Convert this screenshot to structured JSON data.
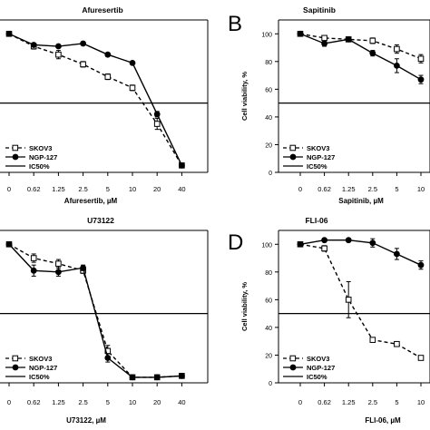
{
  "chart_data": [
    {
      "type": "line",
      "panel_letter": "",
      "title": "Afuresertib",
      "xlabel": "Afuresertib, µM",
      "ylabel": "",
      "categories": [
        "0",
        "0.62",
        "1.25",
        "2.5",
        "5",
        "10",
        "20",
        "40"
      ],
      "yticks": [],
      "ylim": [
        0,
        110
      ],
      "ic50": 50,
      "series": [
        {
          "name": "SKOV3",
          "style": "dashed-open-square",
          "values": [
            100,
            91,
            85,
            78,
            69,
            61,
            35,
            5
          ],
          "errors": [
            0,
            2,
            3,
            2,
            2,
            2,
            4,
            1
          ]
        },
        {
          "name": "NGP-127",
          "style": "solid-filled-circle",
          "values": [
            100,
            92,
            91,
            93,
            85,
            79,
            42,
            5
          ],
          "errors": [
            0,
            1,
            1,
            1,
            1,
            1,
            2,
            1
          ]
        }
      ],
      "legend": {
        "entries": [
          "SKOV3",
          "NGP-127",
          "IC50%"
        ],
        "position": "bottom-left"
      }
    },
    {
      "type": "line",
      "panel_letter": "B",
      "title": "Sapitinib",
      "xlabel": "Sapitinib, µM",
      "ylabel": "Cell viability, %",
      "categories": [
        "0",
        "0.62",
        "1.25",
        "2.5",
        "5",
        "10"
      ],
      "yticks": [
        "0",
        "20",
        "40",
        "60",
        "80",
        "100"
      ],
      "ylim": [
        0,
        110
      ],
      "ic50": 50,
      "series": [
        {
          "name": "SKOV3",
          "style": "dashed-open-square",
          "values": [
            100,
            97,
            96,
            95,
            89,
            82
          ],
          "errors": [
            0,
            1,
            1,
            2,
            3,
            3
          ]
        },
        {
          "name": "NGP-127",
          "style": "solid-filled-circle",
          "values": [
            100,
            93,
            96,
            86,
            77,
            67
          ],
          "errors": [
            0,
            2,
            1,
            2,
            5,
            3
          ]
        }
      ],
      "legend": {
        "entries": [
          "SKOV3",
          "NGP-127",
          "IC50%"
        ],
        "position": "bottom-left"
      }
    },
    {
      "type": "line",
      "panel_letter": "",
      "title": "U73122",
      "xlabel": "U73122, µM",
      "ylabel": "",
      "categories": [
        "0",
        "0.62",
        "1.25",
        "2.5",
        "5",
        "10",
        "20",
        "40"
      ],
      "yticks": [],
      "ylim": [
        0,
        110
      ],
      "ic50": 50,
      "series": [
        {
          "name": "SKOV3",
          "style": "dashed-open-square",
          "values": [
            100,
            90,
            86,
            81,
            23,
            4,
            4,
            5
          ],
          "errors": [
            0,
            3,
            3,
            2,
            4,
            1,
            1,
            1
          ]
        },
        {
          "name": "NGP-127",
          "style": "solid-filled-circle",
          "values": [
            100,
            81,
            80,
            83,
            18,
            4,
            4,
            5
          ],
          "errors": [
            0,
            4,
            3,
            2,
            3,
            1,
            1,
            1
          ]
        }
      ],
      "legend": {
        "entries": [
          "SKOV3",
          "NGP-127",
          "IC50%"
        ],
        "position": "bottom-left"
      }
    },
    {
      "type": "line",
      "panel_letter": "D",
      "title": "FLI-06",
      "xlabel": "FLI-06, µM",
      "ylabel": "Cell viability, %",
      "categories": [
        "0",
        "0.62",
        "1.25",
        "2.5",
        "5",
        "10"
      ],
      "yticks": [
        "0",
        "20",
        "40",
        "60",
        "80",
        "100"
      ],
      "ylim": [
        0,
        110
      ],
      "ic50": 50,
      "series": [
        {
          "name": "SKOV3",
          "style": "dashed-open-square",
          "values": [
            100,
            97,
            60,
            31,
            28,
            18
          ],
          "errors": [
            0,
            2,
            13,
            1,
            1,
            1
          ]
        },
        {
          "name": "NGP-127",
          "style": "solid-filled-circle",
          "values": [
            100,
            103,
            103,
            101,
            93,
            85
          ],
          "errors": [
            0,
            1,
            1,
            3,
            4,
            3
          ]
        }
      ],
      "legend": {
        "entries": [
          "SKOV3",
          "NGP-127",
          "IC50%"
        ],
        "position": "bottom-left"
      }
    }
  ]
}
